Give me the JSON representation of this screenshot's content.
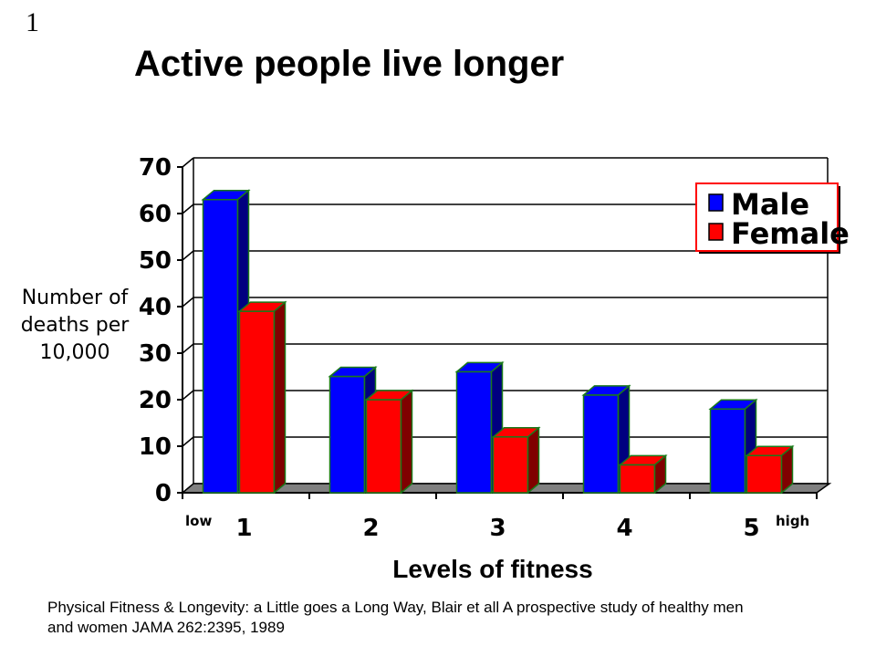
{
  "slide": {
    "number": "1",
    "title": "Active people live longer",
    "citation": "Physical Fitness & Longevity: a Little goes a Long Way, Blair et all A prospective study of healthy men and women JAMA 262:2395, 1989"
  },
  "chart_data": {
    "type": "bar",
    "title": "Active people live longer",
    "xlabel": "Levels of fitness",
    "ylabel": "Number of deaths per 10,000",
    "categories": [
      "1",
      "2",
      "3",
      "4",
      "5"
    ],
    "x_end_labels": {
      "low": "low",
      "high": "high"
    },
    "yticks": [
      "0",
      "10",
      "20",
      "30",
      "40",
      "50",
      "60",
      "70"
    ],
    "ylim": [
      0,
      70
    ],
    "grid": true,
    "legend_position": "top-right",
    "series": [
      {
        "name": "Male",
        "values": [
          63,
          25,
          26,
          21,
          18
        ],
        "color": "#0000ff",
        "side_color": "#000080"
      },
      {
        "name": "Female",
        "values": [
          39,
          20,
          12,
          6,
          8
        ],
        "color": "#ff0000",
        "side_color": "#800000"
      }
    ]
  },
  "colors": {
    "bar_outline": "#1a7a1a",
    "floor": "#808080",
    "legend_border": "#ff0000"
  }
}
